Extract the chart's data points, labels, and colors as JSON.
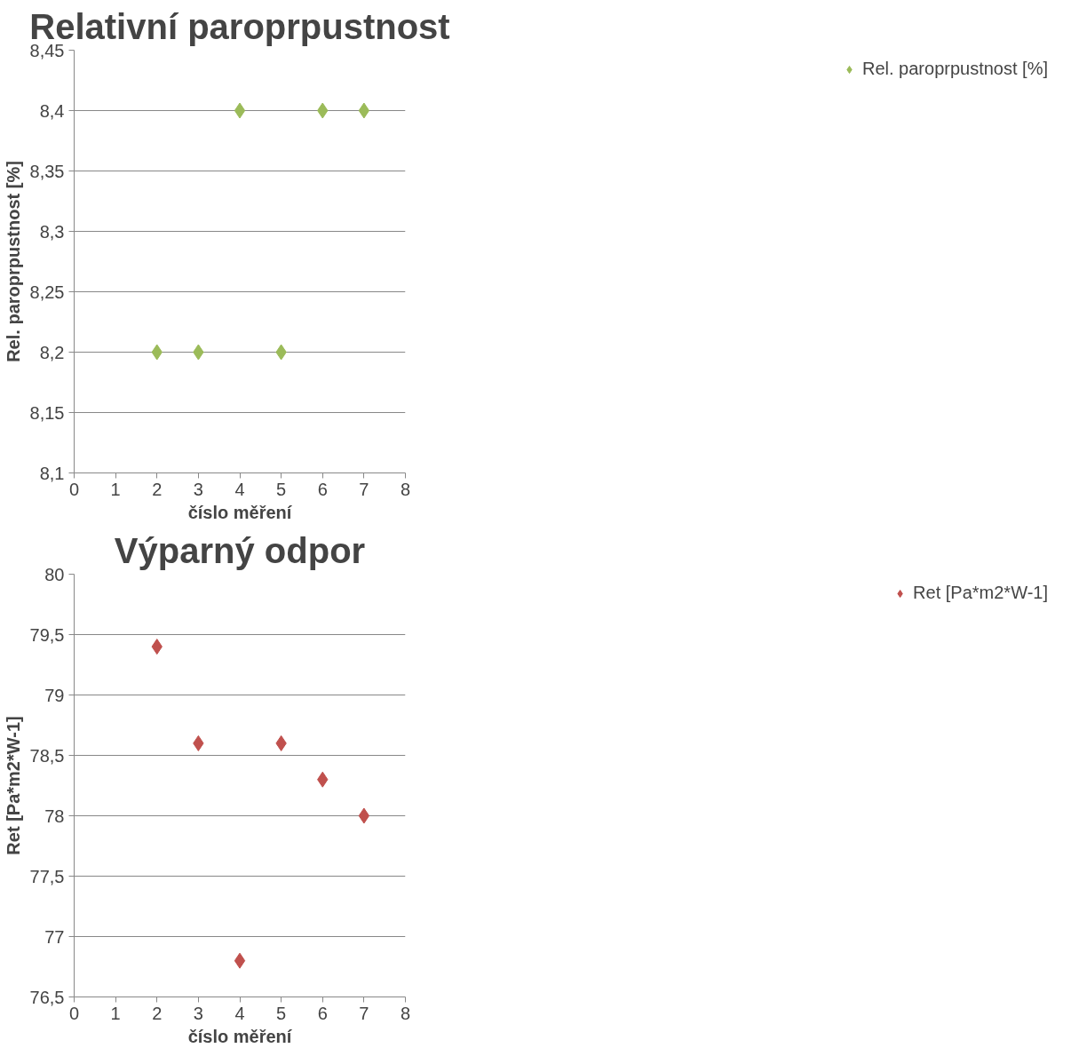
{
  "chart_data": [
    {
      "type": "scatter",
      "title": "Relativní paroprpustnost",
      "xlabel": "číslo měření",
      "ylabel": "Rel. paroprpustnost [%]",
      "x": [
        2,
        3,
        4,
        5,
        6,
        7
      ],
      "series": [
        {
          "name": "Rel. paroprpustnost [%]",
          "color": "#9bbb59",
          "values": [
            8.2,
            8.2,
            8.4,
            8.2,
            8.4,
            8.4
          ]
        }
      ],
      "xlim": [
        0,
        8
      ],
      "xticks": [
        0,
        1,
        2,
        3,
        4,
        5,
        6,
        7,
        8
      ],
      "ylim": [
        8.1,
        8.45
      ],
      "yticks": [
        {
          "value": 8.1,
          "label": "8,1"
        },
        {
          "value": 8.15,
          "label": "8,15"
        },
        {
          "value": 8.2,
          "label": "8,2"
        },
        {
          "value": 8.25,
          "label": "8,25"
        },
        {
          "value": 8.3,
          "label": "8,3"
        },
        {
          "value": 8.35,
          "label": "8,35"
        },
        {
          "value": 8.4,
          "label": "8,4"
        },
        {
          "value": 8.45,
          "label": "8,45"
        }
      ],
      "grid": "y",
      "legend": "right",
      "marker": "diamond"
    },
    {
      "type": "scatter",
      "title": "Výparný odpor",
      "xlabel": "číslo měření",
      "ylabel": "Ret [Pa*m2*W-1]",
      "x": [
        2,
        3,
        4,
        5,
        6,
        7
      ],
      "series": [
        {
          "name": "Ret [Pa*m2*W-1]",
          "color": "#c0504d",
          "values": [
            79.4,
            78.6,
            76.8,
            78.6,
            78.3,
            78.0
          ]
        }
      ],
      "xlim": [
        0,
        8
      ],
      "xticks": [
        0,
        1,
        2,
        3,
        4,
        5,
        6,
        7,
        8
      ],
      "ylim": [
        76.5,
        80
      ],
      "yticks": [
        {
          "value": 76.5,
          "label": "76,5"
        },
        77,
        {
          "value": 77.5,
          "label": "77,5"
        },
        78,
        {
          "value": 78.5,
          "label": "78,5"
        },
        79,
        {
          "value": 79.5,
          "label": "79,5"
        },
        80
      ],
      "grid": "y",
      "legend": "right",
      "marker": "diamond"
    }
  ]
}
